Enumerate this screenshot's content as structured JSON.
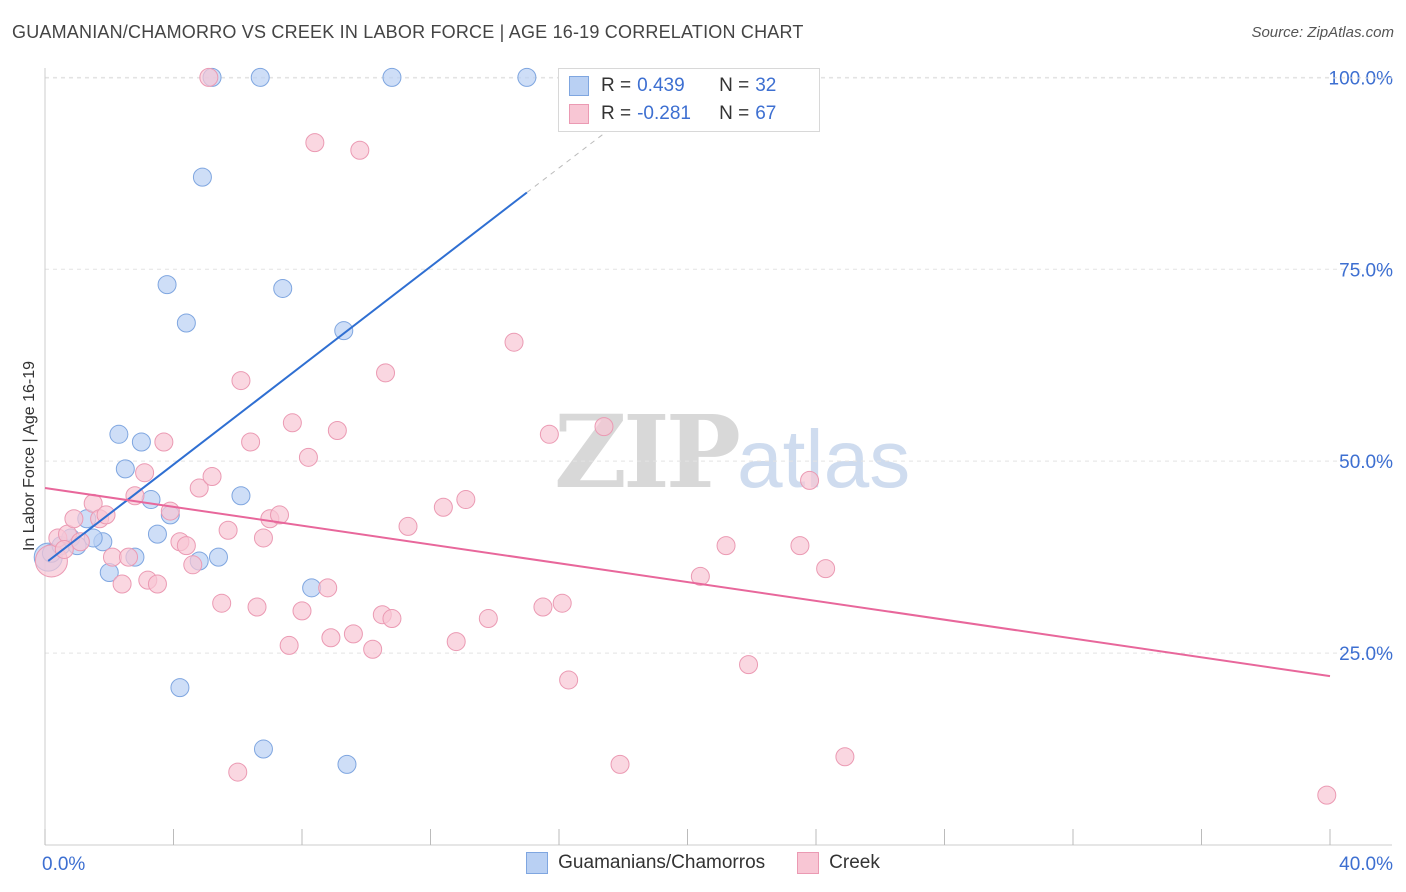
{
  "title": "GUAMANIAN/CHAMORRO VS CREEK IN LABOR FORCE | AGE 16-19 CORRELATION CHART",
  "source": "Source: ZipAtlas.com",
  "watermark": {
    "zip": "ZIP",
    "atlas": "atlas"
  },
  "colors": {
    "blue_fill": "#b9d0f3",
    "blue_stroke": "#7fa6e0",
    "blue_line": "#2f6fd2",
    "pink_fill": "#f8c6d4",
    "pink_stroke": "#eb9ab3",
    "pink_line": "#e8679b",
    "tick_label": "#3d6fd1",
    "grid": "#e3e3e3"
  },
  "stats": [
    {
      "r_label": "R =",
      "r_value": "0.439",
      "n_label": "N =",
      "n_value": "32"
    },
    {
      "r_label": "R =",
      "r_value": "-0.281",
      "n_label": "N =",
      "n_value": "67"
    }
  ],
  "legend": [
    "Guamanians/Chamorros",
    "Creek"
  ],
  "chart_data": {
    "type": "scatter",
    "title": "GUAMANIAN/CHAMORRO VS CREEK IN LABOR FORCE | AGE 16-19 CORRELATION CHART",
    "xlabel": "",
    "ylabel": "In Labor Force | Age 16-19",
    "xlim": [
      0,
      40
    ],
    "ylim": [
      0,
      102
    ],
    "x_tick_labels": [
      "0.0%",
      "40.0%"
    ],
    "y_ticks": [
      25,
      50,
      75,
      100
    ],
    "y_tick_labels": [
      "25.0%",
      "50.0%",
      "75.0%",
      "100.0%"
    ],
    "grid": true,
    "series": [
      {
        "name": "Guamanians/Chamorros",
        "color": "blue",
        "R": 0.439,
        "N": 32,
        "trend": {
          "x1": 0.1,
          "y1": 37,
          "x2": 15.0,
          "y2": 85,
          "x_dash_end": 20.0,
          "y_dash_end": 101
        },
        "points": [
          [
            0.1,
            37.5,
            14
          ],
          [
            0.2,
            38.0,
            9
          ],
          [
            0.5,
            39.0,
            9
          ],
          [
            0.8,
            40.0,
            9
          ],
          [
            1.0,
            39.0,
            9
          ],
          [
            1.3,
            42.5,
            9
          ],
          [
            1.8,
            39.5,
            9
          ],
          [
            2.0,
            35.5,
            9
          ],
          [
            2.3,
            53.5,
            9
          ],
          [
            2.5,
            49.0,
            9
          ],
          [
            2.8,
            37.5,
            9
          ],
          [
            3.0,
            52.5,
            9
          ],
          [
            3.3,
            45.0,
            9
          ],
          [
            3.5,
            40.5,
            9
          ],
          [
            3.8,
            73.0,
            9
          ],
          [
            3.9,
            43.0,
            9
          ],
          [
            4.2,
            20.5,
            9
          ],
          [
            4.4,
            68.0,
            9
          ],
          [
            4.8,
            37.0,
            9
          ],
          [
            4.9,
            87.0,
            9
          ],
          [
            5.2,
            100.0,
            9
          ],
          [
            5.4,
            37.5,
            9
          ],
          [
            6.1,
            45.5,
            9
          ],
          [
            6.7,
            100.0,
            9
          ],
          [
            6.8,
            12.5,
            9
          ],
          [
            7.4,
            72.5,
            9
          ],
          [
            8.3,
            33.5,
            9
          ],
          [
            9.3,
            67.0,
            9
          ],
          [
            9.4,
            10.5,
            9
          ],
          [
            10.8,
            100.0,
            9
          ],
          [
            15.0,
            100.0,
            9
          ],
          [
            1.5,
            40.0,
            9
          ]
        ]
      },
      {
        "name": "Creek",
        "color": "pink",
        "R": -0.281,
        "N": 67,
        "trend": {
          "x1": 0.0,
          "y1": 46.5,
          "x2": 40.0,
          "y2": 22.0
        },
        "points": [
          [
            0.2,
            37.0,
            16
          ],
          [
            0.4,
            40.0,
            9
          ],
          [
            0.7,
            40.5,
            9
          ],
          [
            0.9,
            42.5,
            9
          ],
          [
            1.1,
            39.5,
            9
          ],
          [
            1.5,
            44.5,
            9
          ],
          [
            1.7,
            42.5,
            9
          ],
          [
            1.9,
            43.0,
            9
          ],
          [
            2.1,
            37.5,
            9
          ],
          [
            2.4,
            34.0,
            9
          ],
          [
            2.6,
            37.5,
            9
          ],
          [
            2.8,
            45.5,
            9
          ],
          [
            3.1,
            48.5,
            9
          ],
          [
            3.2,
            34.5,
            9
          ],
          [
            3.5,
            34.0,
            9
          ],
          [
            3.7,
            52.5,
            9
          ],
          [
            3.9,
            43.5,
            9
          ],
          [
            4.2,
            39.5,
            9
          ],
          [
            4.4,
            39.0,
            9
          ],
          [
            4.6,
            36.5,
            9
          ],
          [
            4.8,
            46.5,
            9
          ],
          [
            5.1,
            100.0,
            9
          ],
          [
            5.2,
            48.0,
            9
          ],
          [
            5.5,
            31.5,
            9
          ],
          [
            5.7,
            41.0,
            9
          ],
          [
            6.0,
            9.5,
            9
          ],
          [
            6.1,
            60.5,
            9
          ],
          [
            6.4,
            52.5,
            9
          ],
          [
            6.6,
            31.0,
            9
          ],
          [
            6.8,
            40.0,
            9
          ],
          [
            7.0,
            42.5,
            9
          ],
          [
            7.3,
            43.0,
            9
          ],
          [
            7.6,
            26.0,
            9
          ],
          [
            7.7,
            55.0,
            9
          ],
          [
            8.0,
            30.5,
            9
          ],
          [
            8.2,
            50.5,
            9
          ],
          [
            8.4,
            91.5,
            9
          ],
          [
            8.8,
            33.5,
            9
          ],
          [
            8.9,
            27.0,
            9
          ],
          [
            9.1,
            54.0,
            9
          ],
          [
            9.6,
            27.5,
            9
          ],
          [
            9.8,
            90.5,
            9
          ],
          [
            10.2,
            25.5,
            9
          ],
          [
            10.5,
            30.0,
            9
          ],
          [
            10.6,
            61.5,
            9
          ],
          [
            10.8,
            29.5,
            9
          ],
          [
            11.3,
            41.5,
            9
          ],
          [
            12.4,
            44.0,
            9
          ],
          [
            12.8,
            26.5,
            9
          ],
          [
            13.1,
            45.0,
            9
          ],
          [
            13.8,
            29.5,
            9
          ],
          [
            14.6,
            65.5,
            9
          ],
          [
            15.5,
            31.0,
            9
          ],
          [
            15.7,
            53.5,
            9
          ],
          [
            16.1,
            31.5,
            9
          ],
          [
            16.3,
            21.5,
            9
          ],
          [
            17.4,
            54.5,
            9
          ],
          [
            17.9,
            10.5,
            9
          ],
          [
            20.4,
            35.0,
            9
          ],
          [
            21.2,
            39.0,
            9
          ],
          [
            21.9,
            23.5,
            9
          ],
          [
            23.5,
            39.0,
            9
          ],
          [
            23.8,
            47.5,
            9
          ],
          [
            24.3,
            36.0,
            9
          ],
          [
            24.9,
            11.5,
            9
          ],
          [
            39.9,
            6.5,
            9
          ],
          [
            0.6,
            38.5,
            9
          ]
        ]
      }
    ]
  }
}
